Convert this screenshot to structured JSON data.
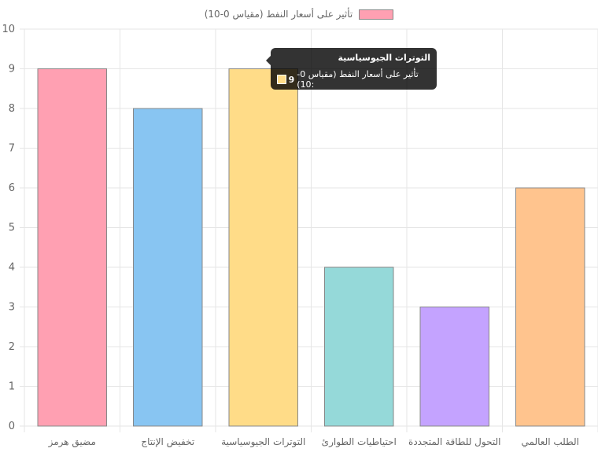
{
  "chart_data": {
    "type": "bar",
    "categories": [
      "مضيق هرمز",
      "تخفيض الإنتاج",
      "التوترات الجيوسياسية",
      "احتياطيات الطوارئ",
      "التحول للطاقة المتجددة",
      "الطلب العالمي"
    ],
    "series": [
      {
        "name": "تأثير على أسعار النفط (مقياس 0-10)",
        "values": [
          9,
          8,
          9,
          4,
          3,
          6
        ]
      }
    ],
    "colors": [
      "#ffa0b2",
      "#88c5f2",
      "#ffdc88",
      "#95d9d9",
      "#c4a3ff",
      "#ffc48e"
    ],
    "border_color": "#888888",
    "ylim": [
      0,
      10
    ],
    "yticks": [
      "0",
      "1",
      "2",
      "3",
      "4",
      "5",
      "6",
      "7",
      "8",
      "9",
      "10"
    ],
    "grid": true,
    "legend_position": "top",
    "xlabel": "",
    "ylabel": "",
    "title": ""
  },
  "tooltip": {
    "title": "التوترات الجيوسياسية",
    "label": "تأثير على أسعار النفط (مقياس 0-10):",
    "value": "9",
    "color": "#ffdd88"
  }
}
